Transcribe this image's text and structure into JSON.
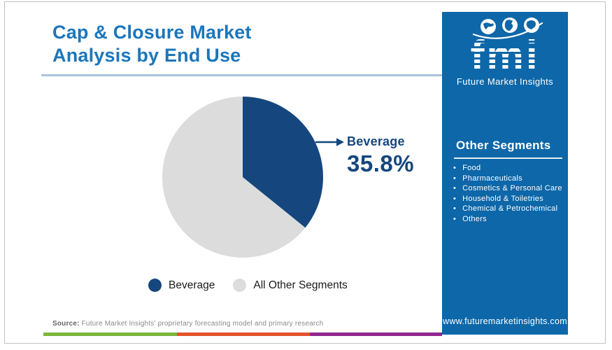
{
  "header": {
    "title_line1": "Cap & Closure Market",
    "title_line2": "Analysis by End Use"
  },
  "chart_data": {
    "type": "pie",
    "title": "Cap & Closure Market Analysis by End Use",
    "slices": [
      {
        "label": "Beverage",
        "value": 35.8,
        "color": "#15477e"
      },
      {
        "label": "All Other Segments",
        "value": 64.2,
        "color": "#dcdcdc"
      }
    ],
    "start_angle_deg": 0,
    "direction": "clockwise",
    "legend_position": "bottom",
    "annotation": "Beverage 35.8%"
  },
  "callout": {
    "label": "Beverage",
    "value": "35.8%"
  },
  "sidebar": {
    "logo": {
      "brand": "fmi",
      "tagline": "Future Market Insights"
    },
    "heading": "Other Segments",
    "items": [
      "Food",
      "Pharmaceuticals",
      "Cosmetics & Personal Care",
      "Household & Toiletries",
      "Chemical & Petrochemical",
      "Others"
    ],
    "website": "www.futuremarketinsights.com"
  },
  "footer": {
    "source_label": "Source:",
    "source_text": " Future Market Insights' proprietary forecasting model and primary research"
  },
  "colors": {
    "title_blue": "#1b76bb",
    "sidebar_blue": "#0d67a8",
    "navy": "#15477e",
    "pie_gray": "#dcdcdc",
    "divider_blue": "#a9c5de",
    "stripe_green": "#7db63d",
    "stripe_orange": "#e5532a",
    "stripe_purple": "#92278f"
  }
}
